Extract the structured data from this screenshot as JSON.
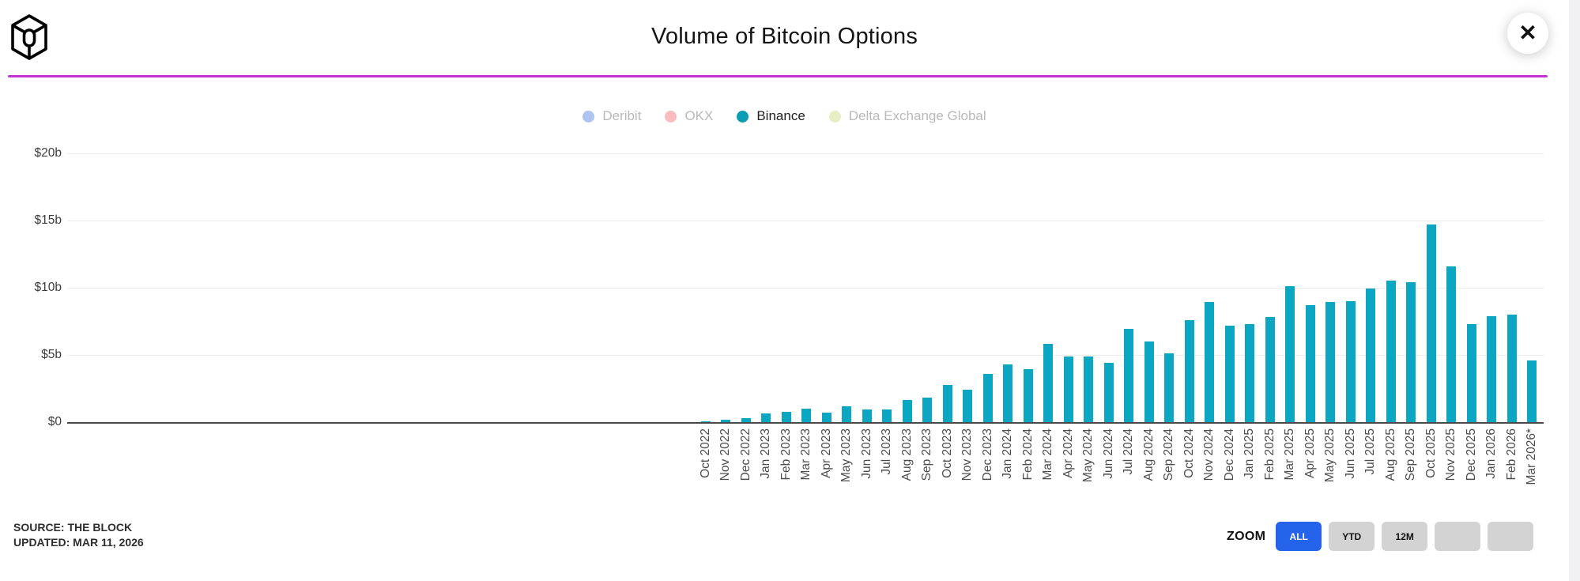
{
  "header": {
    "title": "Volume of Bitcoin Options",
    "close_icon": "✕"
  },
  "legend": {
    "items": [
      {
        "label": "Deribit",
        "color": "#aec4f0",
        "active": false
      },
      {
        "label": "OKX",
        "color": "#f9bdbd",
        "active": false
      },
      {
        "label": "Binance",
        "color": "#0a9db2",
        "active": true
      },
      {
        "label": "Delta Exchange Global",
        "color": "#e7eec6",
        "active": false
      }
    ]
  },
  "chart_data": {
    "type": "bar",
    "title": "Volume of Bitcoin Options",
    "series_name": "Binance",
    "bar_color": "#0ba6c2",
    "ylim": [
      0,
      20
    ],
    "yticks": [
      "$0",
      "$5b",
      "$10b",
      "$15b",
      "$20b"
    ],
    "ytick_values": [
      0,
      5,
      10,
      15,
      20
    ],
    "grid": true,
    "legend_position": "top-center",
    "unit": "USD billions",
    "categories": [
      "Oct 2022",
      "Nov 2022",
      "Dec 2022",
      "Jan 2023",
      "Feb 2023",
      "Mar 2023",
      "Apr 2023",
      "May 2023",
      "Jun 2023",
      "Jul 2023",
      "Aug 2023",
      "Sep 2023",
      "Oct 2023",
      "Nov 2023",
      "Dec 2023",
      "Jan 2024",
      "Feb 2024",
      "Mar 2024",
      "Apr 2024",
      "May 2024",
      "Jun 2024",
      "Jul 2024",
      "Aug 2024",
      "Sep 2024",
      "Oct 2024",
      "Nov 2024",
      "Dec 2024",
      "Jan 2025",
      "Feb 2025",
      "Mar 2025",
      "Apr 2025",
      "May 2025",
      "Jun 2025",
      "Jul 2025",
      "Aug 2025",
      "Sep 2025",
      "Oct 2025",
      "Nov 2025",
      "Dec 2025",
      "Jan 2026",
      "Feb 2026",
      "Mar 2026*"
    ],
    "values": [
      0.05,
      0.15,
      0.25,
      0.6,
      0.75,
      1.0,
      0.7,
      1.15,
      0.9,
      0.9,
      1.65,
      1.8,
      2.75,
      2.4,
      3.55,
      4.3,
      3.9,
      5.8,
      4.85,
      4.85,
      4.4,
      6.95,
      6.0,
      5.1,
      7.6,
      8.9,
      7.15,
      7.25,
      7.8,
      10.1,
      8.7,
      8.9,
      9.0,
      9.9,
      10.5,
      10.4,
      14.7,
      11.6,
      7.3,
      7.85,
      8.0,
      4.55
    ]
  },
  "footer": {
    "source": "SOURCE: THE BLOCK",
    "updated": "UPDATED: MAR 11, 2026",
    "zoom_label": "ZOOM",
    "zoom_buttons": [
      {
        "label": "ALL",
        "active": true
      },
      {
        "label": "YTD",
        "active": false
      },
      {
        "label": "12M",
        "active": false
      },
      {
        "label": "",
        "active": false
      },
      {
        "label": "",
        "active": false
      }
    ]
  },
  "colors": {
    "accent_rule": "#c131d3",
    "active_button": "#2563eb",
    "inactive_button": "#d3d3d3",
    "axis": "#4a4a4a",
    "gridline": "#ececec"
  }
}
